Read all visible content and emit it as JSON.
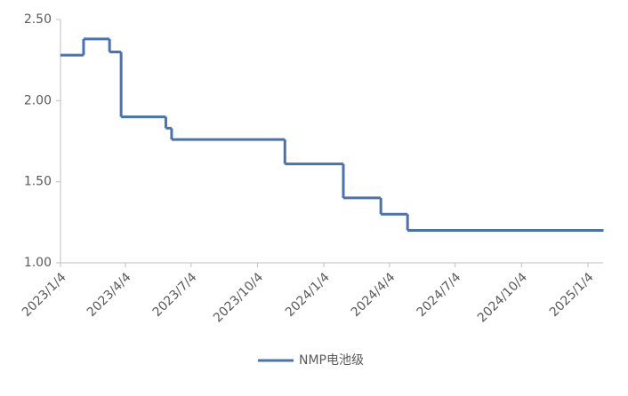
{
  "chart_data": {
    "type": "line",
    "step": "post",
    "x": [
      "2023/1/4",
      "2023/2/5",
      "2023/3/13",
      "2023/3/29",
      "2023/5/30",
      "2023/6/7",
      "2023/11/11",
      "2024/1/31",
      "2024/3/23",
      "2024/4/29",
      "2025/1/25"
    ],
    "series": [
      {
        "name": "NMP电池级",
        "color": "#4a72b0",
        "values": [
          2.28,
          2.38,
          2.3,
          1.9,
          1.83,
          1.76,
          1.61,
          1.4,
          1.3,
          1.2,
          1.2
        ]
      }
    ],
    "xlim": [
      "2023/1/4",
      "2025/1/25"
    ],
    "xticks": [
      "2023/1/4",
      "2023/4/4",
      "2023/7/4",
      "2023/10/4",
      "2024/1/4",
      "2024/4/4",
      "2024/7/4",
      "2024/10/4",
      "2025/1/4"
    ],
    "ylim": [
      1,
      2.5
    ],
    "yticks": [
      {
        "value": 1,
        "label": "1.00"
      },
      {
        "value": 1.5,
        "label": "1.50"
      },
      {
        "value": 2,
        "label": "2.00"
      },
      {
        "value": 2.5,
        "label": "2.50"
      }
    ],
    "grid": false,
    "legend": "bottom"
  }
}
